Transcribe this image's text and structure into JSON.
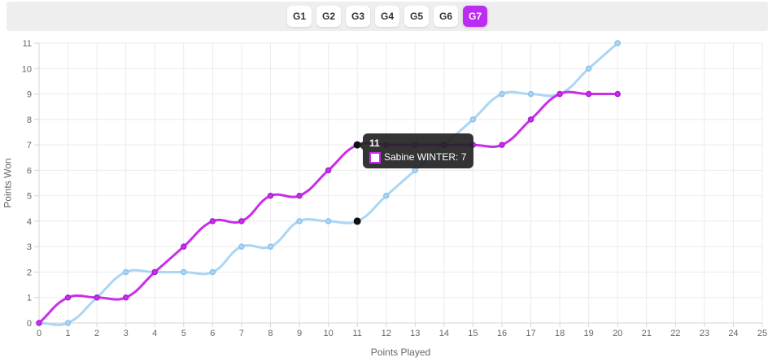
{
  "toolbar": {
    "buttons": [
      {
        "label": "G1",
        "selected": false
      },
      {
        "label": "G2",
        "selected": false
      },
      {
        "label": "G3",
        "selected": false
      },
      {
        "label": "G4",
        "selected": false
      },
      {
        "label": "G5",
        "selected": false
      },
      {
        "label": "G6",
        "selected": false
      },
      {
        "label": "G7",
        "selected": true
      }
    ],
    "selected_color": "#bb2df2"
  },
  "chart_data": {
    "type": "line",
    "x": [
      0,
      1,
      2,
      3,
      4,
      5,
      6,
      7,
      8,
      9,
      10,
      11,
      12,
      13,
      14,
      15,
      16,
      17,
      18,
      19,
      20
    ],
    "series": [
      {
        "name": "",
        "color": "#abd6f4",
        "marker_stroke": "#8fc2ec",
        "values": [
          0,
          0,
          1,
          2,
          2,
          2,
          2,
          3,
          3,
          4,
          4,
          4,
          5,
          6,
          7,
          8,
          9,
          9,
          9,
          10,
          11
        ]
      },
      {
        "name": "Sabine WINTER",
        "color": "#c92fe9",
        "marker_stroke": "#ab1ed4",
        "values": [
          0,
          1,
          1,
          1,
          2,
          3,
          4,
          4,
          5,
          5,
          6,
          7,
          7,
          7,
          7,
          7,
          7,
          8,
          9,
          9,
          9
        ]
      }
    ],
    "xlabel": "Points Played",
    "ylabel": "Points Won",
    "xlim": [
      0,
      25
    ],
    "ylim": [
      0,
      11
    ],
    "x_ticks": [
      0,
      1,
      2,
      3,
      4,
      5,
      6,
      7,
      8,
      9,
      10,
      11,
      12,
      13,
      14,
      15,
      16,
      17,
      18,
      19,
      20,
      21,
      22,
      23,
      24,
      25
    ],
    "y_ticks": [
      0,
      1,
      2,
      3,
      4,
      5,
      6,
      7,
      8,
      9,
      10,
      11
    ],
    "grid": true,
    "grid_color": "#ebebeb",
    "axis_color": "#d4d4d4",
    "tick_label_color": "#666666",
    "highlight": {
      "x": 11,
      "series_values": [
        4,
        7
      ],
      "dot_color": "#111111"
    },
    "tooltip": {
      "title": "11",
      "label": "Sabine WINTER: 7"
    }
  }
}
